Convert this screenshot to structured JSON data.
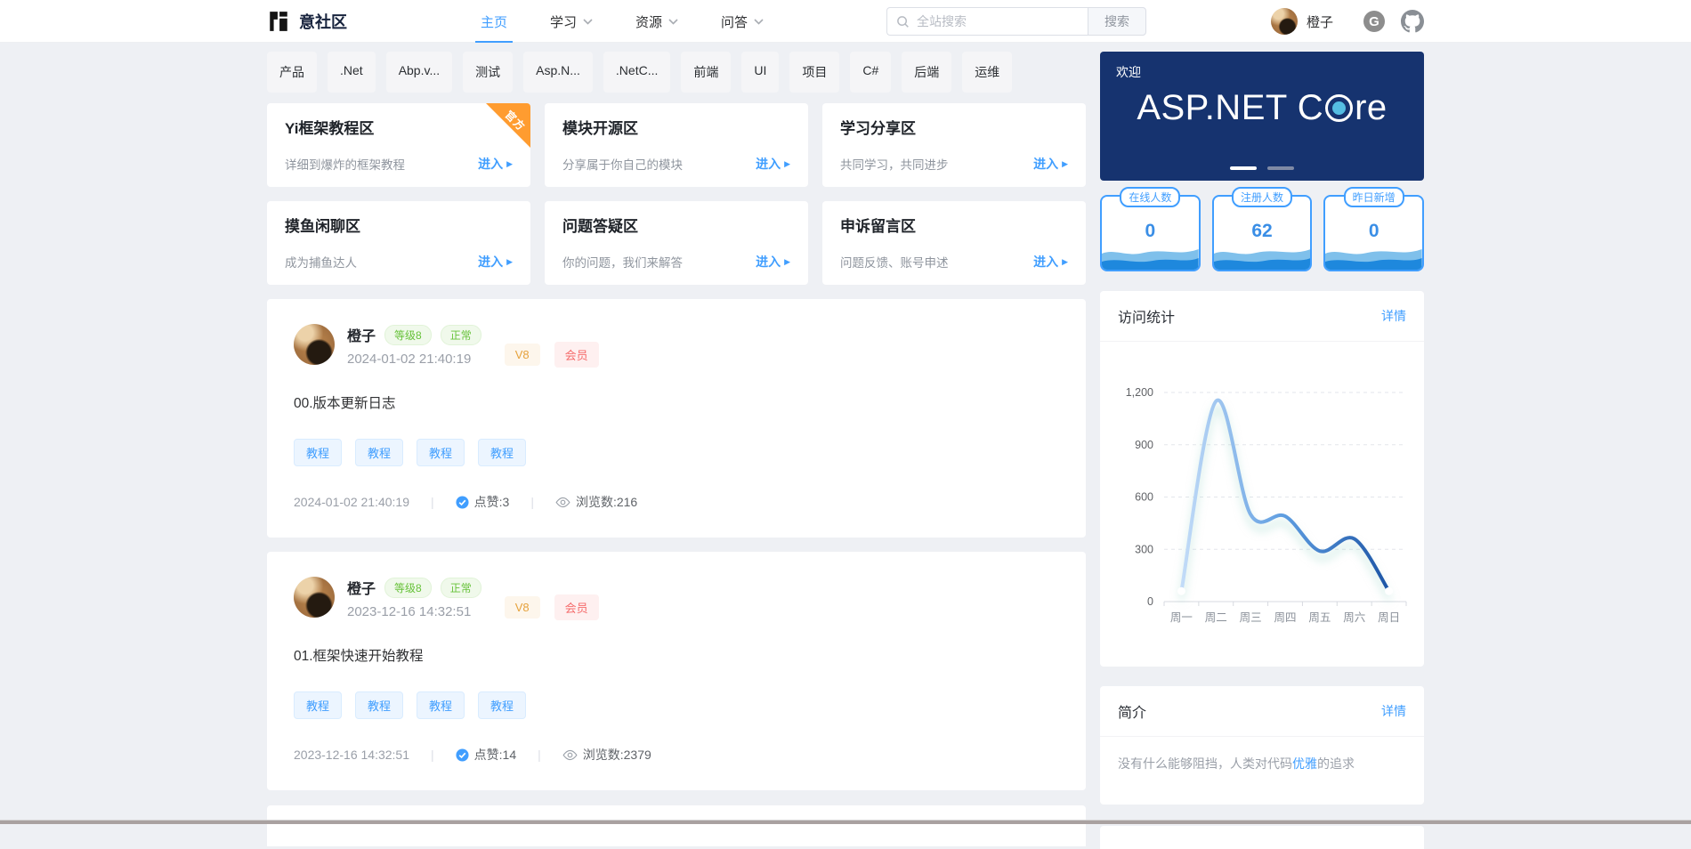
{
  "navbar": {
    "brand": "意社区",
    "nav": [
      {
        "label": "主页"
      },
      {
        "label": "学习"
      },
      {
        "label": "资源"
      },
      {
        "label": "问答"
      }
    ],
    "search_placeholder": "全站搜索",
    "search_button": "搜索",
    "username": "橙子"
  },
  "tags": [
    "产品",
    ".Net",
    "Abp.v...",
    "测试",
    "Asp.N...",
    ".NetC...",
    "前端",
    "UI",
    "项目",
    "C#",
    "后端",
    "运维"
  ],
  "zones": [
    {
      "title": "Yi框架教程区",
      "desc": "详细到爆炸的框架教程",
      "enter": "进入",
      "ribbon": "官方"
    },
    {
      "title": "模块开源区",
      "desc": "分享属于你自己的模块",
      "enter": "进入"
    },
    {
      "title": "学习分享区",
      "desc": "共同学习，共同进步",
      "enter": "进入"
    },
    {
      "title": "摸鱼闲聊区",
      "desc": "成为捕鱼达人",
      "enter": "进入"
    },
    {
      "title": "问题答疑区",
      "desc": "你的问题，我们来解答",
      "enter": "进入"
    },
    {
      "title": "申诉留言区",
      "desc": "问题反馈、账号申述",
      "enter": "进入"
    }
  ],
  "posts": [
    {
      "author": "橙子",
      "level": "等级8",
      "status": "正常",
      "vip": "V8",
      "member": "会员",
      "datetime": "2024-01-02 21:40:19",
      "title": "00.版本更新日志",
      "tags": [
        "教程",
        "教程",
        "教程",
        "教程"
      ],
      "likes": "点赞:3",
      "views": "浏览数:216"
    },
    {
      "author": "橙子",
      "level": "等级8",
      "status": "正常",
      "vip": "V8",
      "member": "会员",
      "datetime": "2023-12-16 14:32:51",
      "title": "01.框架快速开始教程",
      "tags": [
        "教程",
        "教程",
        "教程",
        "教程"
      ],
      "likes": "点赞:14",
      "views": "浏览数:2379"
    }
  ],
  "sidebar": {
    "banner": {
      "welcome": "欢迎",
      "brand_left": "ASP.NET C",
      "brand_right": "re"
    },
    "stats": [
      {
        "label": "在线人数",
        "value": "0"
      },
      {
        "label": "注册人数",
        "value": "62"
      },
      {
        "label": "昨日新增",
        "value": "0"
      }
    ],
    "visit_title": "访问统计",
    "visit_link": "详情",
    "intro_title": "简介",
    "intro_link": "详情",
    "intro_pre": "没有什么能够阻挡，人类对代码",
    "intro_highlight": "优雅",
    "intro_post": "的追求"
  },
  "colors": {
    "accent": "#409eff",
    "banner_navy": "#16336f",
    "core_dot": "#55bde2",
    "success": "#67c23a",
    "warning": "#e6a23c",
    "danger": "#f56c6c",
    "ribbon_orange": "#ff9c30"
  },
  "chart_data": {
    "type": "line",
    "title": "访问统计",
    "categories": [
      "周一",
      "周二",
      "周三",
      "周四",
      "周五",
      "周六",
      "周日"
    ],
    "values": [
      60,
      1150,
      500,
      490,
      290,
      360,
      60
    ],
    "ylim": [
      0,
      1200
    ],
    "yticks": [
      {
        "v": 0,
        "label": "0"
      },
      {
        "v": 300,
        "label": "300"
      },
      {
        "v": 600,
        "label": "600"
      },
      {
        "v": 900,
        "label": "900"
      },
      {
        "v": 1200,
        "label": "1,200"
      }
    ],
    "grid": "dashed",
    "smooth": true,
    "legend": "none",
    "line_gradient": [
      "#c3dcf8",
      "#5d9ce0",
      "#1d55a6"
    ]
  }
}
